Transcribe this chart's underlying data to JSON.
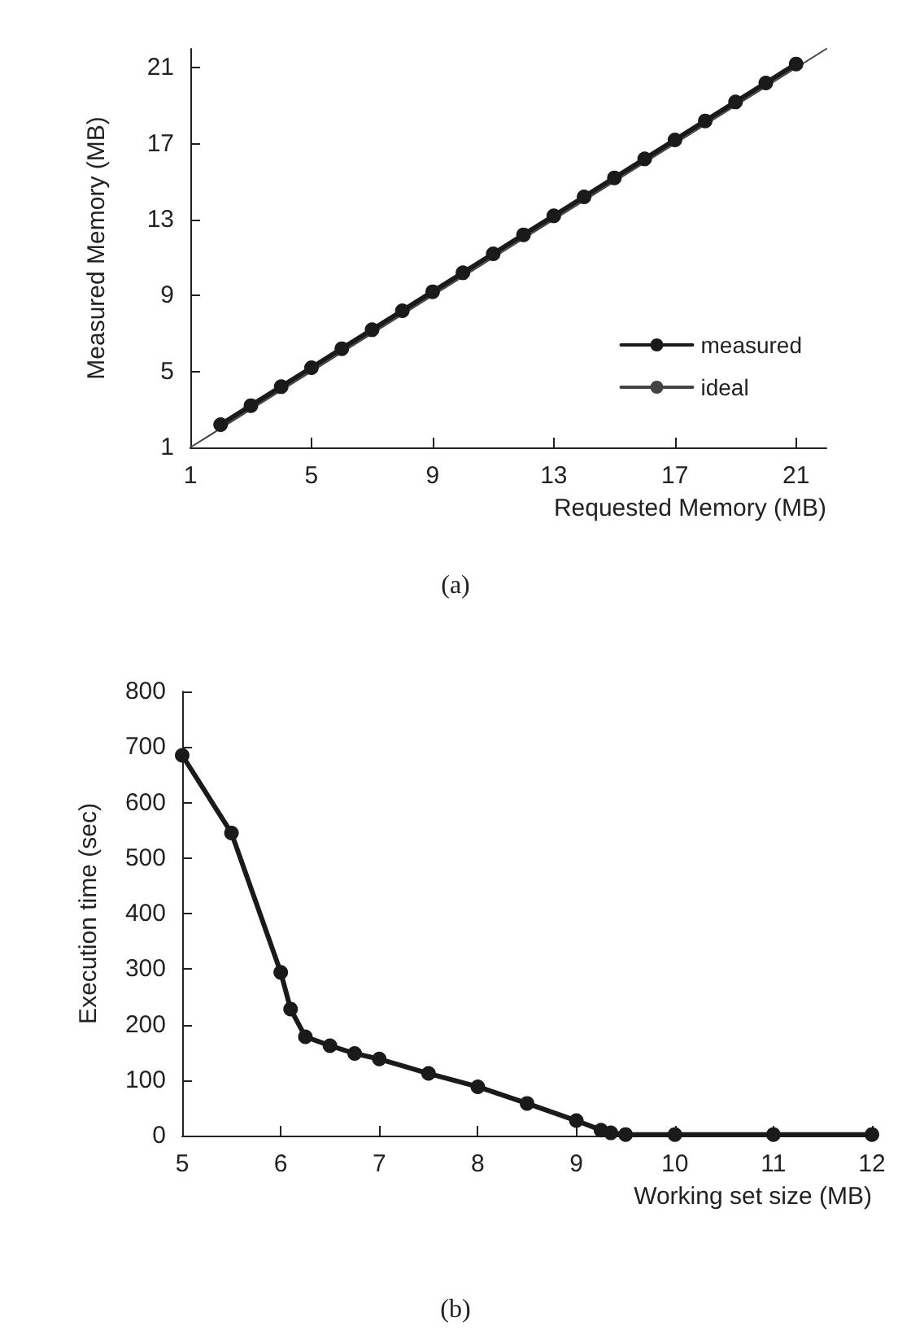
{
  "chart_data": [
    {
      "type": "line",
      "xlabel": "Requested Memory (MB)",
      "ylabel": "Measured Memory (MB)",
      "annotations": [
        "(a)"
      ],
      "xlim": [
        1,
        22
      ],
      "ylim": [
        1,
        22
      ],
      "xticks": [
        1,
        5,
        9,
        13,
        17,
        21
      ],
      "yticks": [
        1,
        5,
        9,
        13,
        17,
        21
      ],
      "grid": false,
      "legend": "bottom right",
      "series": [
        {
          "name": "measured",
          "color": "#1a1a1a",
          "marker": "circle",
          "x": [
            2,
            3,
            4,
            5,
            6,
            7,
            8,
            9,
            10,
            11,
            12,
            13,
            14,
            15,
            16,
            17,
            18,
            19,
            20,
            21
          ],
          "values": [
            2.2,
            3.2,
            4.2,
            5.2,
            6.2,
            7.2,
            8.2,
            9.2,
            10.2,
            11.2,
            12.2,
            13.2,
            14.2,
            15.2,
            16.2,
            17.2,
            18.2,
            19.2,
            20.2,
            21.2
          ]
        },
        {
          "name": "ideal",
          "color": "#444444",
          "marker": "none",
          "x": [
            1,
            22
          ],
          "values": [
            1,
            22
          ]
        }
      ]
    },
    {
      "type": "line",
      "xlabel": "Working set size (MB)",
      "ylabel": "Execution time (sec)",
      "annotations": [
        "(b)"
      ],
      "xlim": [
        5,
        12
      ],
      "ylim": [
        0,
        800
      ],
      "xticks": [
        5,
        6,
        7,
        8,
        9,
        10,
        11,
        12
      ],
      "yticks": [
        0,
        100,
        200,
        300,
        400,
        500,
        600,
        700,
        800
      ],
      "grid": false,
      "legend": false,
      "series": [
        {
          "color": "#1a1a1a",
          "marker": "circle",
          "x": [
            5,
            5.5,
            6,
            6.1,
            6.25,
            6.5,
            6.75,
            7,
            7.5,
            8,
            8.5,
            9,
            9.25,
            9.35,
            9.5,
            10,
            11,
            12
          ],
          "values": [
            685,
            545,
            294,
            228,
            178,
            162,
            148,
            138,
            112,
            88,
            58,
            27,
            10,
            5,
            2,
            2,
            2,
            2
          ]
        }
      ]
    }
  ]
}
